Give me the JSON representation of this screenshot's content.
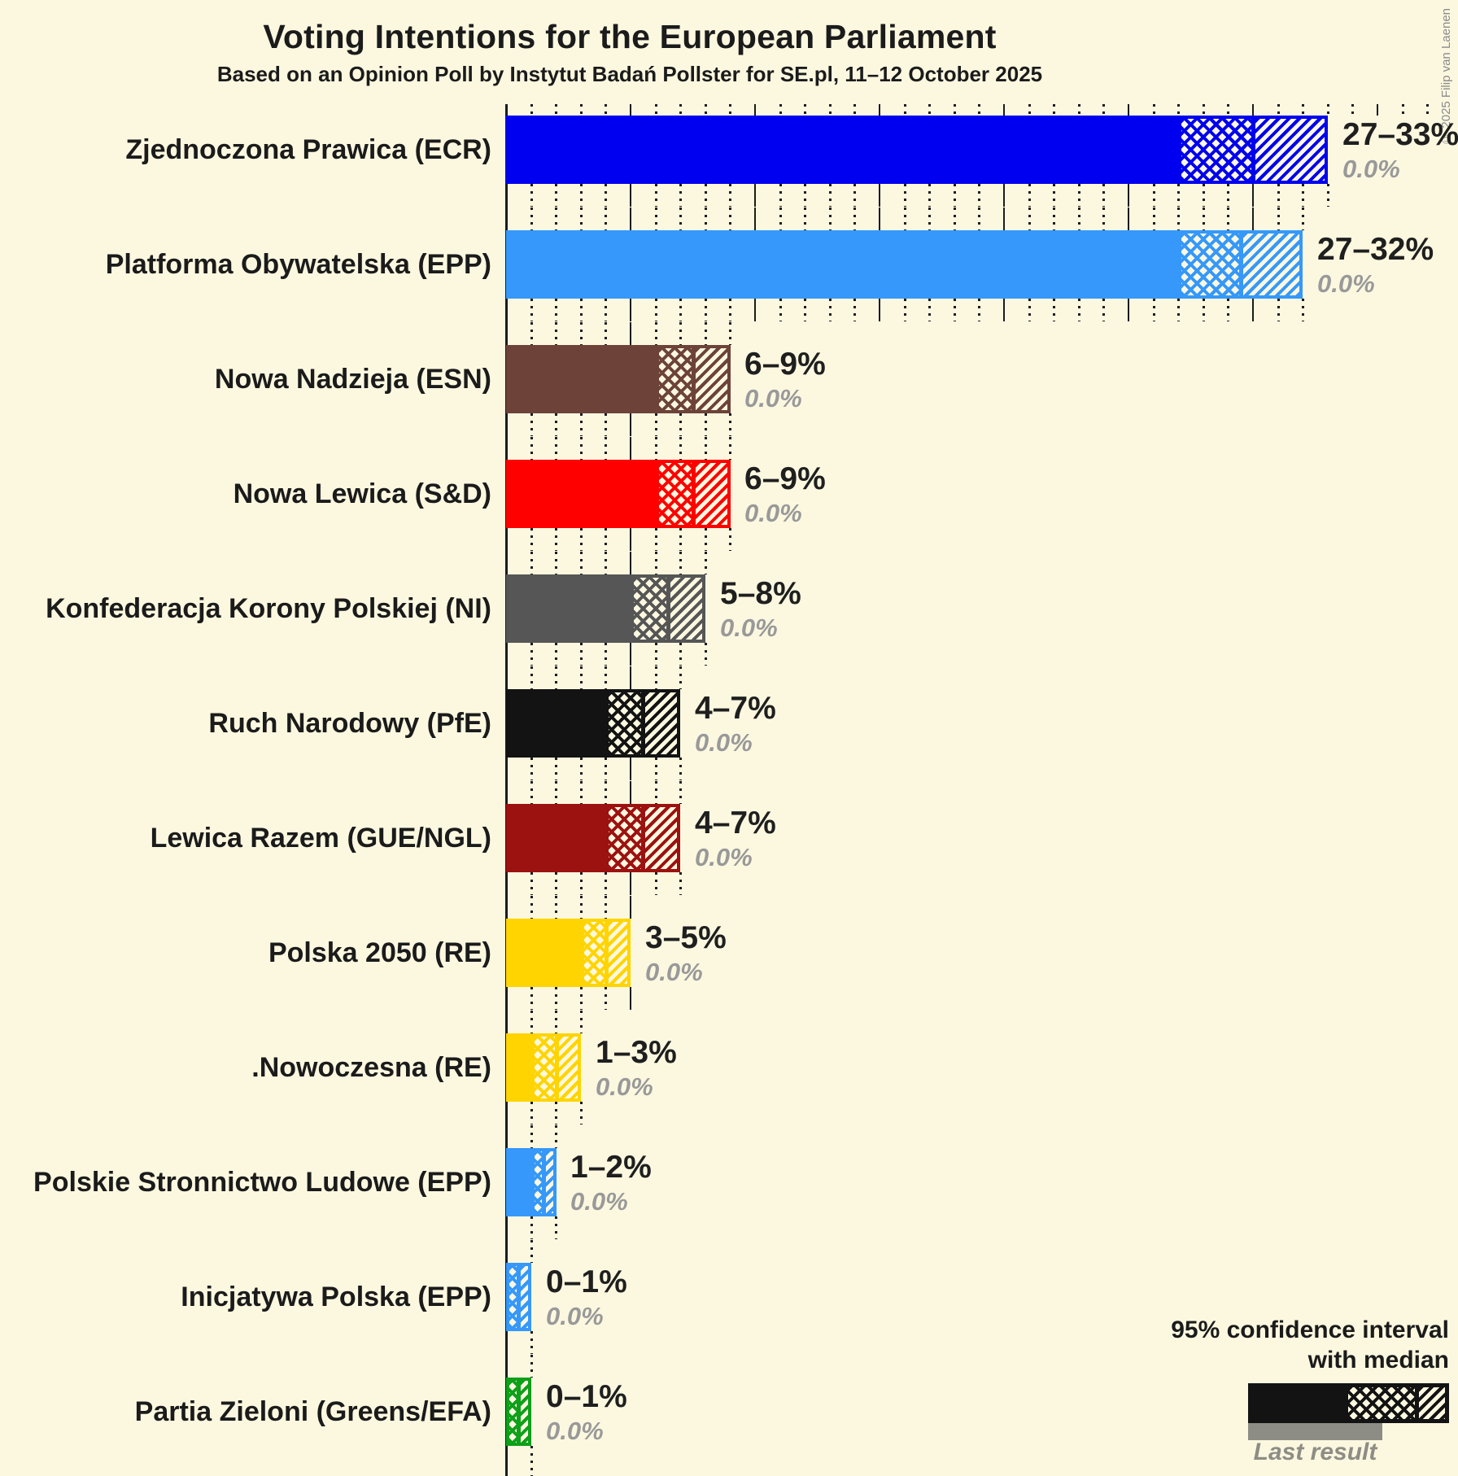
{
  "chart_data": {
    "type": "bar",
    "title": "Voting Intentions for the European Parliament",
    "subtitle": "Based on an Opinion Poll by Instytut Badań Pollster for SE.pl, 11–12 October 2025",
    "unit": "%",
    "x_axis": {
      "min": 0,
      "max": 37,
      "solid_gridline_step": 5,
      "dotted_gridline_step": 1,
      "tick_labels_visible": false
    },
    "bar_style": "solid to lower bound, crosshatch to median, diagonal hatch to upper bound of 95% confidence interval",
    "parties": [
      {
        "label": "Zjednoczona Prawica (ECR)",
        "low": 27,
        "median": 30,
        "high": 33,
        "range_label": "27–33%",
        "last_result_label": "0.0%",
        "last_result": 0.0,
        "color": "#0000f0"
      },
      {
        "label": "Platforma Obywatelska (EPP)",
        "low": 27,
        "median": 29.5,
        "high": 32,
        "range_label": "27–32%",
        "last_result_label": "0.0%",
        "last_result": 0.0,
        "color": "#3598fa"
      },
      {
        "label": "Nowa Nadzieja (ESN)",
        "low": 6,
        "median": 7.5,
        "high": 9,
        "range_label": "6–9%",
        "last_result_label": "0.0%",
        "last_result": 0.0,
        "color": "#6d4339"
      },
      {
        "label": "Nowa Lewica (S&D)",
        "low": 6,
        "median": 7.5,
        "high": 9,
        "range_label": "6–9%",
        "last_result_label": "0.0%",
        "last_result": 0.0,
        "color": "#ff0000"
      },
      {
        "label": "Konfederacja Korony Polskiej (NI)",
        "low": 5,
        "median": 6.5,
        "high": 8,
        "range_label": "5–8%",
        "last_result_label": "0.0%",
        "last_result": 0.0,
        "color": "#565656"
      },
      {
        "label": "Ruch Narodowy (PfE)",
        "low": 4,
        "median": 5.5,
        "high": 7,
        "range_label": "4–7%",
        "last_result_label": "0.0%",
        "last_result": 0.0,
        "color": "#131313"
      },
      {
        "label": "Lewica Razem (GUE/NGL)",
        "low": 4,
        "median": 5.5,
        "high": 7,
        "range_label": "4–7%",
        "last_result_label": "0.0%",
        "last_result": 0.0,
        "color": "#9c1210"
      },
      {
        "label": "Polska 2050 (RE)",
        "low": 3,
        "median": 4,
        "high": 5,
        "range_label": "3–5%",
        "last_result_label": "0.0%",
        "last_result": 0.0,
        "color": "#ffd400"
      },
      {
        "label": ".Nowoczesna (RE)",
        "low": 1,
        "median": 2,
        "high": 3,
        "range_label": "1–3%",
        "last_result_label": "0.0%",
        "last_result": 0.0,
        "color": "#ffd400"
      },
      {
        "label": "Polskie Stronnictwo Ludowe (EPP)",
        "low": 1,
        "median": 1.5,
        "high": 2,
        "range_label": "1–2%",
        "last_result_label": "0.0%",
        "last_result": 0.0,
        "color": "#3598fa"
      },
      {
        "label": "Inicjatywa Polska (EPP)",
        "low": 0,
        "median": 0.5,
        "high": 1,
        "range_label": "0–1%",
        "last_result_label": "0.0%",
        "last_result": 0.0,
        "color": "#3598fa"
      },
      {
        "label": "Partia Zieloni (Greens/EFA)",
        "low": 0,
        "median": 0.5,
        "high": 1,
        "range_label": "0–1%",
        "last_result_label": "0.0%",
        "last_result": 0.0,
        "color": "#0ea019"
      }
    ]
  },
  "legend": {
    "ci_label_line1": "95% confidence interval",
    "ci_label_line2": "with median",
    "last_result_label": "Last result"
  },
  "copyright": "© 2025 Filip van Laenen",
  "colors": {
    "background": "#fcf8e0",
    "text": "#1b1b1b",
    "muted_text": "#999999",
    "gridline": "#1b1b1b",
    "last_result_bar": "#8d8d85"
  }
}
